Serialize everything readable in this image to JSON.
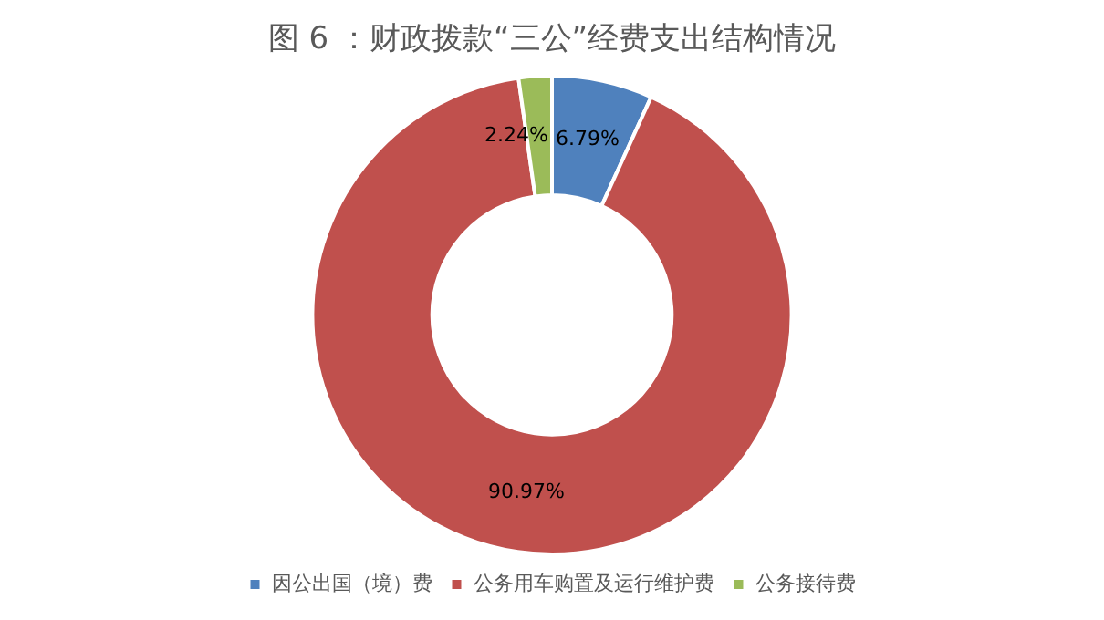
{
  "chart_data": {
    "type": "donut",
    "title": "图 6 ：财政拨款“三公”经费支出结构情况",
    "categories": [
      "因公出国（境）费",
      "公务用车购置及运行维护费",
      "公务接待费"
    ],
    "values": [
      6.79,
      90.97,
      2.24
    ],
    "colors": [
      "#4f81bd",
      "#c0504d",
      "#9bbb59"
    ],
    "value_labels": [
      "6.79%",
      "90.97%",
      "2.24%"
    ],
    "legend": "bottom"
  }
}
